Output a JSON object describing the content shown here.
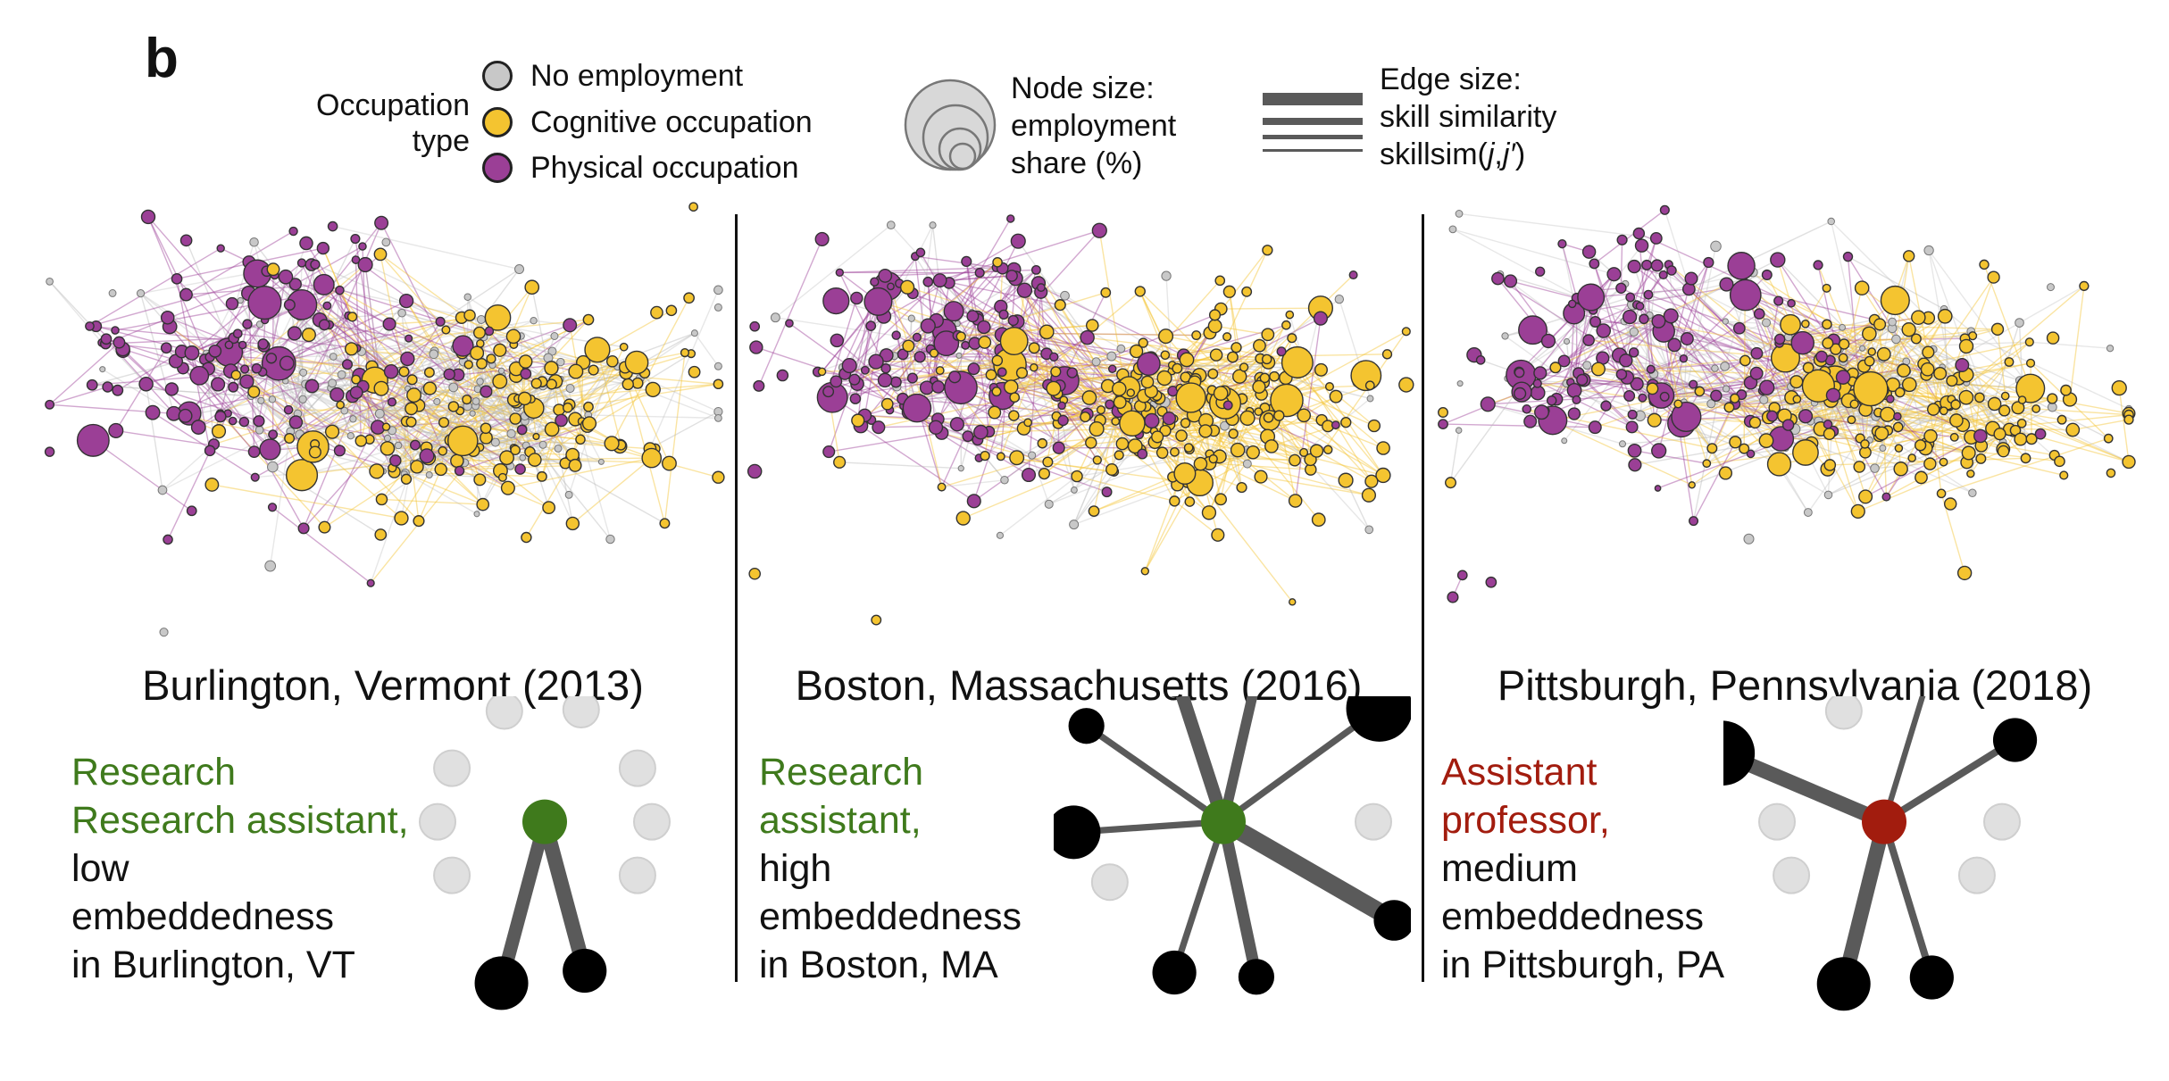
{
  "panel_letter": "b",
  "legend": {
    "occupation_type_title": [
      "Occupation",
      "type"
    ],
    "items": [
      {
        "label": "No employment",
        "color": "#c8c8c8"
      },
      {
        "label": "Cognitive occupation",
        "color": "#f4c430"
      },
      {
        "label": "Physical occupation",
        "color": "#9b3f96"
      }
    ],
    "node_size_lines": [
      "Node size:",
      "employment",
      "share (%)"
    ],
    "edge_size_lines": [
      "Edge size:",
      "skill similarity",
      "skillsim(j,j′)"
    ]
  },
  "colors": {
    "none": "#c8c8c8",
    "cognitive": "#f4c430",
    "physical": "#9b3f96",
    "edge": "#5a5a5a",
    "green_focal": "#3f7a1c",
    "red_focal": "#a21c0e",
    "inactive": "#e0e0e0"
  },
  "panels": [
    {
      "city": "Burlington, Vermont (2013)",
      "focal_occupation": "Research assistant,",
      "focal_color": "green",
      "desc_lines": [
        "low",
        "embeddedness",
        "in Burlington, VT"
      ],
      "cognitive_share": 0.35,
      "ego": {
        "center_color": "green",
        "neighbors": [
          {
            "angle": -110,
            "r": 0.55,
            "size": 0.7,
            "w": 0,
            "active": false
          },
          {
            "angle": -72,
            "r": 0.55,
            "size": 0.7,
            "w": 0,
            "active": false
          },
          {
            "angle": -150,
            "r": 0.5,
            "size": 0.7,
            "w": 0,
            "active": false
          },
          {
            "angle": -30,
            "r": 0.5,
            "size": 0.7,
            "w": 0,
            "active": false
          },
          {
            "angle": 180,
            "r": 0.5,
            "size": 0.7,
            "w": 0,
            "active": false
          },
          {
            "angle": 0,
            "r": 0.5,
            "size": 0.7,
            "w": 0,
            "active": false
          },
          {
            "angle": 150,
            "r": 0.5,
            "size": 0.7,
            "w": 0,
            "active": false
          },
          {
            "angle": 30,
            "r": 0.5,
            "size": 0.7,
            "w": 0,
            "active": false
          },
          {
            "angle": 105,
            "r": 0.78,
            "size": 1.0,
            "w": 0.7,
            "active": true
          },
          {
            "angle": 75,
            "r": 0.72,
            "size": 0.7,
            "w": 0.8,
            "active": true
          }
        ]
      }
    },
    {
      "city": "Boston, Massachusetts (2016)",
      "focal_occupation": "Research",
      "focal_occupation2": "assistant,",
      "focal_color": "green",
      "desc_lines": [
        "high",
        "embeddedness",
        "in Boston, MA"
      ],
      "cognitive_share": 0.6,
      "ego": {
        "center_color": "green",
        "neighbors": [
          {
            "angle": -108,
            "r": 0.72,
            "size": 0.7,
            "w": 0.7,
            "active": true
          },
          {
            "angle": -77,
            "r": 0.74,
            "size": 0.45,
            "w": 0.5,
            "active": true
          },
          {
            "angle": -145,
            "r": 0.78,
            "size": 0.45,
            "w": 0.25,
            "active": true
          },
          {
            "angle": -36,
            "r": 0.9,
            "size": 1.4,
            "w": 0.25,
            "active": true
          },
          {
            "angle": 176,
            "r": 0.7,
            "size": 1.0,
            "w": 0.25,
            "active": true
          },
          {
            "angle": 0,
            "r": 0.7,
            "size": 0.7,
            "w": 0,
            "active": false
          },
          {
            "angle": 152,
            "r": 0.6,
            "size": 0.7,
            "w": 0,
            "active": false
          },
          {
            "angle": 30,
            "r": 0.92,
            "size": 0.6,
            "w": 1.0,
            "active": true
          },
          {
            "angle": 108,
            "r": 0.74,
            "size": 0.7,
            "w": 0.25,
            "active": true
          },
          {
            "angle": 78,
            "r": 0.74,
            "size": 0.45,
            "w": 0.6,
            "active": true
          }
        ]
      }
    },
    {
      "city": "Pittsburgh, Pennsylvania (2018)",
      "focal_occupation": "Assistant",
      "focal_occupation2": "professor,",
      "focal_color": "red",
      "desc_lines": [
        "medium",
        "embeddedness",
        "in Pittsburgh, PA"
      ],
      "cognitive_share": 0.5,
      "ego": {
        "center_color": "red",
        "neighbors": [
          {
            "angle": -110,
            "r": 0.55,
            "size": 0.7,
            "w": 0,
            "active": false
          },
          {
            "angle": -73,
            "r": 0.8,
            "size": 0.45,
            "w": 0.2,
            "active": true
          },
          {
            "angle": -157,
            "r": 0.82,
            "size": 1.35,
            "w": 0.8,
            "active": true
          },
          {
            "angle": -32,
            "r": 0.72,
            "size": 0.7,
            "w": 0.3,
            "active": true
          },
          {
            "angle": 180,
            "r": 0.5,
            "size": 0.7,
            "w": 0,
            "active": false
          },
          {
            "angle": 0,
            "r": 0.55,
            "size": 0.7,
            "w": 0,
            "active": false
          },
          {
            "angle": 150,
            "r": 0.5,
            "size": 0.7,
            "w": 0,
            "active": false
          },
          {
            "angle": 30,
            "r": 0.5,
            "size": 0.7,
            "w": 0,
            "active": false
          },
          {
            "angle": 104,
            "r": 0.78,
            "size": 1.0,
            "w": 0.8,
            "active": true
          },
          {
            "angle": 73,
            "r": 0.76,
            "size": 0.7,
            "w": 0.3,
            "active": true
          }
        ]
      }
    }
  ]
}
